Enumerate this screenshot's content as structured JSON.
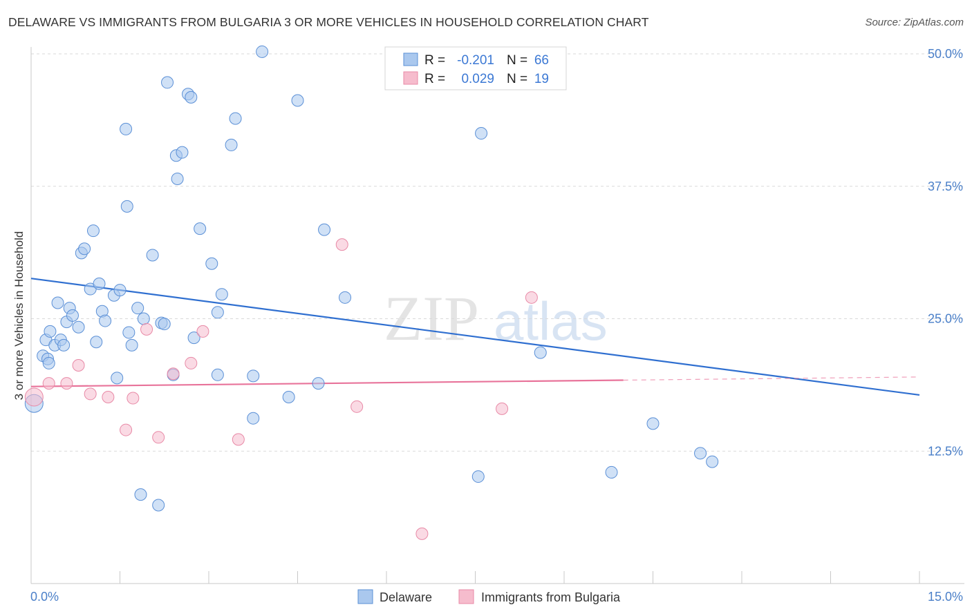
{
  "header": {
    "title": "DELAWARE VS IMMIGRANTS FROM BULGARIA 3 OR MORE VEHICLES IN HOUSEHOLD CORRELATION CHART",
    "source": "Source: ZipAtlas.com"
  },
  "watermark": {
    "zip": "ZIP",
    "atlas": "atlas"
  },
  "colors": {
    "blue_fill": "#aac8ee",
    "blue_stroke": "#5a8fd6",
    "blue_line": "#2f6fd0",
    "pink_fill": "#f6bccd",
    "pink_stroke": "#e889a6",
    "pink_line": "#e8739a",
    "tick_text": "#4a7fc8",
    "grid": "#d9d9d9"
  },
  "stats": [
    {
      "series": "Delaware",
      "r_label": "R =",
      "r_value": "-0.201",
      "n_label": "N =",
      "n_value": "66"
    },
    {
      "series": "Immigrants from Bulgaria",
      "r_label": "R =",
      "r_value": "0.029",
      "n_label": "N =",
      "n_value": "19"
    }
  ],
  "chart_data": {
    "type": "scatter",
    "title": "DELAWARE VS IMMIGRANTS FROM BULGARIA 3 OR MORE VEHICLES IN HOUSEHOLD CORRELATION CHART",
    "xlabel": "",
    "ylabel": "3 or more Vehicles in Household",
    "xlim": [
      0,
      15
    ],
    "ylim": [
      0,
      50
    ],
    "x_tick_labels": [
      {
        "value": 0,
        "label": "0.0%"
      },
      {
        "value": 15,
        "label": "15.0%"
      }
    ],
    "x_minor_ticks": [
      1.5,
      3.0,
      4.5,
      6.0,
      7.5,
      9.0,
      10.5,
      12.0,
      13.5,
      15.0
    ],
    "y_ticks": [
      {
        "value": 12.5,
        "label": "12.5%"
      },
      {
        "value": 25.0,
        "label": "25.0%"
      },
      {
        "value": 37.5,
        "label": "37.5%"
      },
      {
        "value": 50.0,
        "label": "50.0%"
      }
    ],
    "grid": true,
    "legend_position": "bottom-center",
    "series": [
      {
        "name": "Delaware",
        "color": "blue",
        "points": [
          [
            0.05,
            17.0
          ],
          [
            0.2,
            21.5
          ],
          [
            0.25,
            23.0
          ],
          [
            0.28,
            21.2
          ],
          [
            0.3,
            20.8
          ],
          [
            0.32,
            23.8
          ],
          [
            0.4,
            22.5
          ],
          [
            0.45,
            26.5
          ],
          [
            0.5,
            23.0
          ],
          [
            0.55,
            22.5
          ],
          [
            0.6,
            24.7
          ],
          [
            0.65,
            26.0
          ],
          [
            0.7,
            25.3
          ],
          [
            0.8,
            24.2
          ],
          [
            0.85,
            31.2
          ],
          [
            0.9,
            31.6
          ],
          [
            1.0,
            27.8
          ],
          [
            1.05,
            33.3
          ],
          [
            1.1,
            22.8
          ],
          [
            1.15,
            28.3
          ],
          [
            1.2,
            25.7
          ],
          [
            1.25,
            24.8
          ],
          [
            1.4,
            27.2
          ],
          [
            1.45,
            19.4
          ],
          [
            1.5,
            27.7
          ],
          [
            1.6,
            42.9
          ],
          [
            1.62,
            35.6
          ],
          [
            1.65,
            23.7
          ],
          [
            1.7,
            22.5
          ],
          [
            1.8,
            26.0
          ],
          [
            1.85,
            8.4
          ],
          [
            1.9,
            25.0
          ],
          [
            2.05,
            31.0
          ],
          [
            2.15,
            7.4
          ],
          [
            2.2,
            24.6
          ],
          [
            2.25,
            24.5
          ],
          [
            2.3,
            47.3
          ],
          [
            2.4,
            19.7
          ],
          [
            2.45,
            40.4
          ],
          [
            2.47,
            38.2
          ],
          [
            2.55,
            40.7
          ],
          [
            2.65,
            46.2
          ],
          [
            2.7,
            45.9
          ],
          [
            2.75,
            23.2
          ],
          [
            2.85,
            33.5
          ],
          [
            3.05,
            30.2
          ],
          [
            3.15,
            19.7
          ],
          [
            3.15,
            25.6
          ],
          [
            3.22,
            27.3
          ],
          [
            3.38,
            41.4
          ],
          [
            3.45,
            43.9
          ],
          [
            3.75,
            19.6
          ],
          [
            3.75,
            15.6
          ],
          [
            3.9,
            50.2
          ],
          [
            4.35,
            17.6
          ],
          [
            4.5,
            45.6
          ],
          [
            4.85,
            18.9
          ],
          [
            4.95,
            33.4
          ],
          [
            5.3,
            27.0
          ],
          [
            7.55,
            10.1
          ],
          [
            7.6,
            42.5
          ],
          [
            8.6,
            21.8
          ],
          [
            9.8,
            10.5
          ],
          [
            10.5,
            15.1
          ],
          [
            11.3,
            12.3
          ],
          [
            11.5,
            11.5
          ]
        ]
      },
      {
        "name": "Immigrants from Bulgaria",
        "color": "pink",
        "points": [
          [
            0.05,
            17.6
          ],
          [
            0.3,
            18.9
          ],
          [
            0.6,
            18.9
          ],
          [
            0.8,
            20.6
          ],
          [
            1.0,
            17.9
          ],
          [
            1.3,
            17.6
          ],
          [
            1.6,
            14.5
          ],
          [
            1.72,
            17.5
          ],
          [
            1.95,
            24.0
          ],
          [
            2.15,
            13.8
          ],
          [
            2.4,
            19.8
          ],
          [
            2.7,
            20.8
          ],
          [
            2.9,
            23.8
          ],
          [
            3.5,
            13.6
          ],
          [
            5.25,
            32.0
          ],
          [
            5.5,
            16.7
          ],
          [
            6.6,
            4.7
          ],
          [
            7.95,
            16.5
          ],
          [
            8.45,
            27.0
          ]
        ]
      }
    ],
    "trendlines": [
      {
        "series": "Delaware",
        "x": [
          0,
          15
        ],
        "y": [
          28.8,
          17.8
        ],
        "style": "solid"
      },
      {
        "series": "Immigrants from Bulgaria",
        "x": [
          0,
          10.0
        ],
        "y": [
          18.6,
          19.2
        ],
        "style": "solid"
      },
      {
        "series": "Immigrants from Bulgaria",
        "x": [
          10.0,
          15
        ],
        "y": [
          19.2,
          19.5
        ],
        "style": "dashed"
      }
    ]
  },
  "legend": {
    "items": [
      {
        "label": "Delaware",
        "color": "blue"
      },
      {
        "label": "Immigrants from Bulgaria",
        "color": "pink"
      }
    ]
  }
}
